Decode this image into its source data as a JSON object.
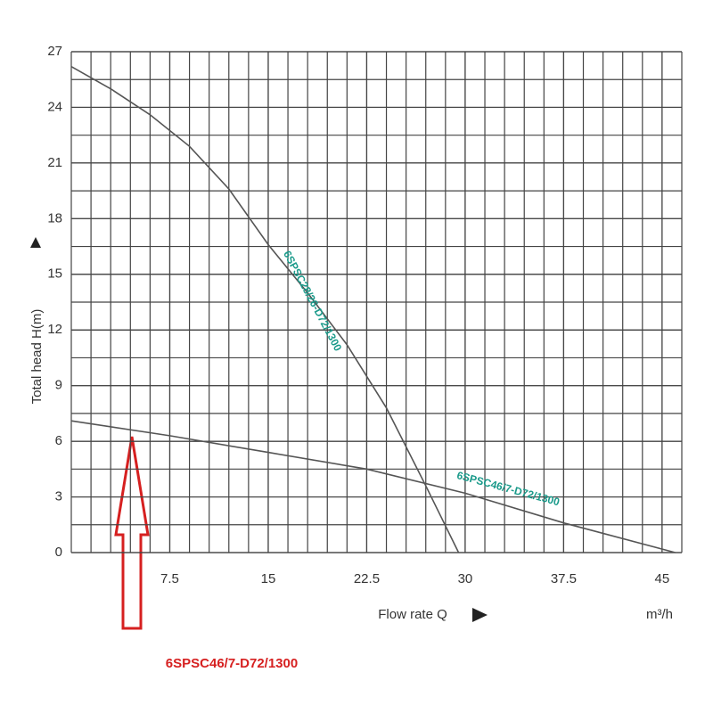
{
  "chart_data": {
    "type": "line",
    "x_label": "Flow rate Q",
    "x_unit": "m³/h",
    "y_label": "Total head H(m)",
    "annotation": "6SPSC46/7-D72/1300",
    "xlim": [
      0,
      46.5
    ],
    "ylim": [
      0,
      27
    ],
    "xticks": [
      7.5,
      15,
      22.5,
      30,
      37.5,
      45
    ],
    "yticks": [
      0,
      3,
      6,
      9,
      12,
      15,
      18,
      21,
      24,
      27
    ],
    "grid": true,
    "minor_grid": {
      "x": 1.5,
      "y": 1.5
    },
    "label_color": "#1a9a8a",
    "series": [
      {
        "name": "6SPSC28/26-D72/1300",
        "color": "#555555",
        "x": [
          0,
          3,
          6,
          9,
          12,
          15,
          18,
          21,
          24,
          27,
          29.5
        ],
        "values": [
          26.2,
          25,
          23.6,
          21.9,
          19.6,
          16.6,
          14,
          11.2,
          7.8,
          3.6,
          0
        ]
      },
      {
        "name": "6SPSC46/7-D72/1300",
        "color": "#555555",
        "x": [
          0,
          7.5,
          15,
          22.5,
          30,
          37.5,
          46
        ],
        "values": [
          7.1,
          6.3,
          5.4,
          4.5,
          3.2,
          1.6,
          0
        ]
      }
    ]
  }
}
